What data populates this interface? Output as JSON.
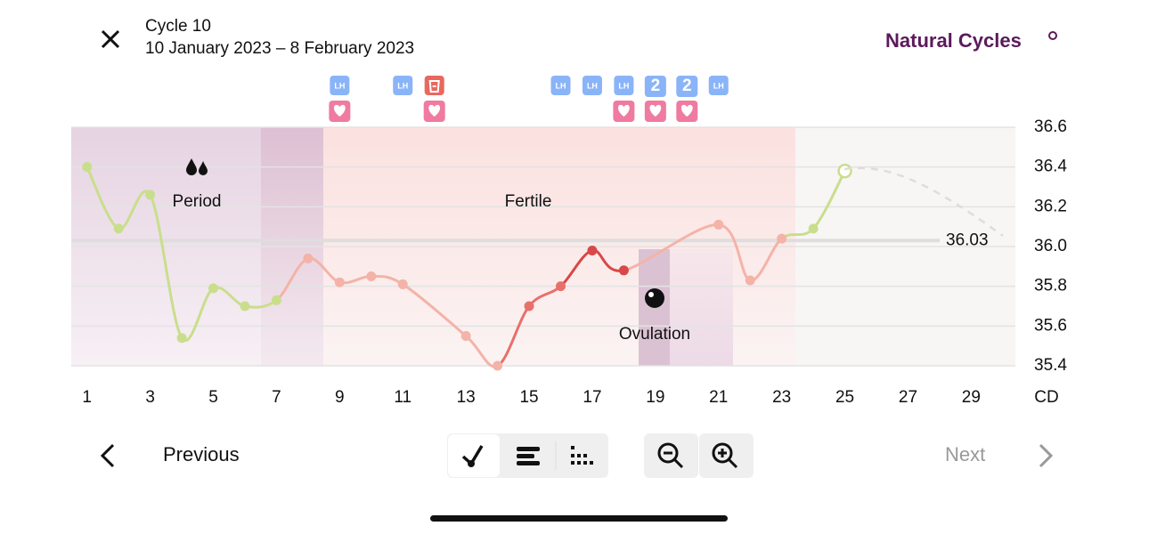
{
  "header": {
    "title": "Cycle 10",
    "dates": "10 January 2023 – 8 February 2023",
    "brand": "Natural Cycles"
  },
  "chart_data": {
    "type": "line",
    "x": [
      1,
      2,
      3,
      4,
      5,
      6,
      7,
      8,
      9,
      10,
      11,
      12,
      13,
      14,
      15,
      16,
      17,
      18,
      19,
      20,
      21,
      22,
      23,
      24,
      25,
      26,
      27,
      28,
      29,
      30
    ],
    "series": [
      {
        "values": [
          36.4,
          36.09,
          36.26,
          35.54,
          35.79,
          35.7,
          35.73,
          35.94,
          35.82,
          35.85,
          35.81,
          null,
          35.55,
          35.4,
          35.7,
          35.8,
          35.98,
          35.88,
          null,
          null,
          36.11,
          35.83,
          36.04,
          36.09,
          36.38,
          null,
          null,
          null,
          null,
          null
        ],
        "point_colors": [
          "#c9de8c",
          "#c9de8c",
          "#c9de8c",
          "#c9de8c",
          "#c9de8c",
          "#c9de8c",
          "#c9de8c",
          "#f4b3a8",
          "#f4b3a8",
          "#f4b3a8",
          "#f4b3a8",
          "#f4b3a8",
          "#f4b3a8",
          "#f4b3a8",
          "#e8706a",
          "#e8706a",
          "#d84848",
          "#d84848",
          "#d84848",
          "#d84848",
          "#f4b3a8",
          "#f4b3a8",
          "#f4b3a8",
          "#c9de8c",
          "#c9de8c",
          "#c9de8c",
          "#c9de8c",
          "#c9de8c",
          "#c9de8c",
          "#c9de8c"
        ]
      }
    ],
    "xlim": [
      0.5,
      30.4
    ],
    "xticks": [
      1,
      3,
      5,
      7,
      9,
      11,
      13,
      15,
      17,
      19,
      21,
      23,
      25,
      27,
      29
    ],
    "x_label": "CD",
    "ylim": [
      35.4,
      36.6
    ],
    "yticks": [
      35.4,
      35.6,
      35.8,
      {
        "value": 36,
        "label": "36.0"
      },
      36.2,
      36.4,
      36.6
    ],
    "grid": true,
    "cover_line": 36.03,
    "annotations": [
      "Period",
      "Fertile",
      "Ovulation"
    ],
    "tests": [
      {
        "x": 9,
        "label": "LH"
      },
      {
        "x": 11,
        "label": "LH"
      },
      {
        "x": 12
      },
      {
        "x": 16,
        "label": "LH"
      },
      {
        "x": 17,
        "label": "LH"
      },
      {
        "x": 18,
        "label": "LH"
      },
      {
        "x": 19,
        "label": "2"
      },
      {
        "x": 20,
        "label": "2"
      },
      {
        "x": 21,
        "label": "LH"
      }
    ],
    "hearts": [
      9,
      12,
      18,
      19,
      20
    ]
  },
  "navigation": {
    "previous": "Previous",
    "next": "Next"
  }
}
